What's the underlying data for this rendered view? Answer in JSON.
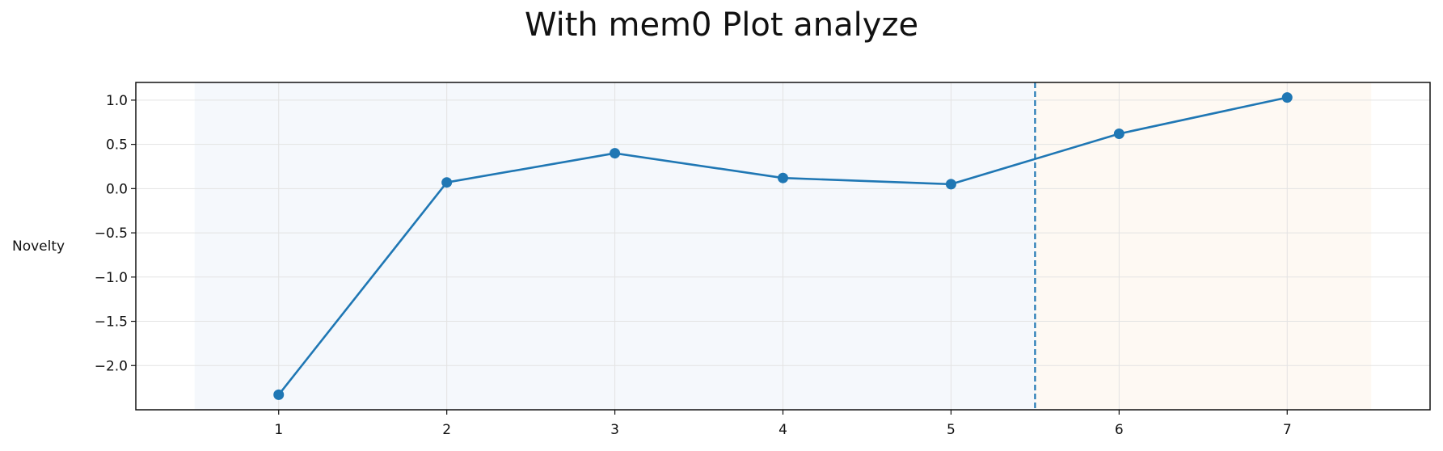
{
  "chart_data": {
    "type": "line",
    "title": "With mem0 Plot analyze",
    "xlabel": "",
    "ylabel": "Novelty",
    "x": [
      1,
      2,
      3,
      4,
      5,
      6,
      7
    ],
    "series": [
      {
        "values": [
          -2.33,
          0.07,
          0.4,
          0.12,
          0.05,
          0.62,
          1.03
        ]
      }
    ],
    "xlim": [
      0.15,
      7.85
    ],
    "ylim": [
      -2.5,
      1.2
    ],
    "xticks": [
      "1",
      "2",
      "3",
      "4",
      "5",
      "6",
      "7"
    ],
    "yticks": [
      "1.0",
      "0.5",
      "0.0",
      "−0.5",
      "−1.0",
      "−1.5",
      "−2.0"
    ],
    "ytick_values": [
      1.0,
      0.5,
      0.0,
      -0.5,
      -1.0,
      -1.5,
      -2.0
    ],
    "shaded_regions": [
      {
        "from": 0.5,
        "to": 5.5,
        "color": "#f5f8fc"
      },
      {
        "from": 5.5,
        "to": 7.5,
        "color": "#fef9f3"
      }
    ],
    "vline": {
      "x": 5.5,
      "style": "dashed"
    },
    "grid": true,
    "line_color": "#1f77b4"
  }
}
